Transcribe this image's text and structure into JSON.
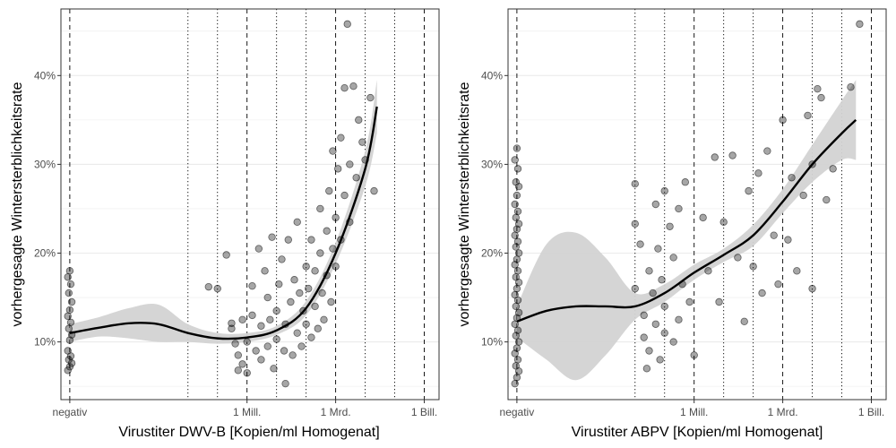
{
  "colors": {
    "background": "#ffffff",
    "panel_border": "#333333",
    "grid_major": "#ebebeb",
    "reference_lines": "#000000",
    "points": "#000000",
    "ribbon": "#d3d3d3",
    "smooth_line": "#000000"
  },
  "chart_data": [
    {
      "type": "scatter",
      "title": "",
      "xlabel": "Virustiter DWV-B [Kopien/ml Homogenat]",
      "ylabel": "vorhergesagte Wintersterblichkeitsrate",
      "x_scale": "log10 (with 'negativ' category at left)",
      "x_ticks": [
        "negativ",
        "1 Mill.",
        "1 Mrd.",
        "1 Bill."
      ],
      "x_tick_values": [
        1,
        1000000,
        1000000000,
        1000000000000
      ],
      "y_ticks": [
        "10%",
        "20%",
        "30%",
        "40%"
      ],
      "y_tick_values": [
        10,
        20,
        30,
        40
      ],
      "ylim": [
        3.5,
        47.5
      ],
      "xlim_log10": [
        -0.3,
        12.5
      ],
      "grid": true,
      "dashed_vlines": [
        1,
        1000000,
        1000000000,
        1000000000000
      ],
      "dotted_vlines": [
        10000,
        100000,
        10000000,
        100000000,
        10000000000,
        100000000000
      ],
      "smooth": {
        "x": [
          1,
          10,
          100,
          1000,
          10000,
          100000,
          1000000,
          10000000,
          100000000,
          1000000000,
          10000000000,
          25000000000
        ],
        "y": [
          11.0,
          11.6,
          12.1,
          12.0,
          11.0,
          10.4,
          10.5,
          11.3,
          13.8,
          20.0,
          29.5,
          36.5
        ],
        "lower": [
          10.0,
          10.6,
          10.4,
          10.0,
          10.0,
          9.8,
          10.0,
          10.8,
          13.0,
          18.8,
          27.5,
          33.5
        ],
        "upper": [
          12.0,
          12.8,
          13.8,
          14.2,
          12.0,
          11.0,
          11.0,
          11.8,
          14.6,
          21.2,
          31.5,
          39.5
        ]
      },
      "points": [
        {
          "x": 1,
          "y": 6.8
        },
        {
          "x": 1,
          "y": 7.2
        },
        {
          "x": 1,
          "y": 7.6
        },
        {
          "x": 1,
          "y": 8.0
        },
        {
          "x": 1,
          "y": 8.4
        },
        {
          "x": 1,
          "y": 9.0
        },
        {
          "x": 1,
          "y": 10.2
        },
        {
          "x": 1,
          "y": 10.8
        },
        {
          "x": 1,
          "y": 11.5
        },
        {
          "x": 1,
          "y": 12.2
        },
        {
          "x": 1,
          "y": 12.9
        },
        {
          "x": 1,
          "y": 13.6
        },
        {
          "x": 1,
          "y": 14.5
        },
        {
          "x": 1,
          "y": 15.5
        },
        {
          "x": 1,
          "y": 16.5
        },
        {
          "x": 1,
          "y": 17.3
        },
        {
          "x": 1,
          "y": 18.0
        },
        {
          "x": 50000,
          "y": 16.2
        },
        {
          "x": 100000,
          "y": 16.0
        },
        {
          "x": 200000,
          "y": 19.8
        },
        {
          "x": 300000,
          "y": 12.1
        },
        {
          "x": 300000,
          "y": 11.5
        },
        {
          "x": 400000,
          "y": 9.8
        },
        {
          "x": 500000,
          "y": 8.5
        },
        {
          "x": 500000,
          "y": 6.8
        },
        {
          "x": 700000,
          "y": 12.5
        },
        {
          "x": 700000,
          "y": 7.5
        },
        {
          "x": 1000000,
          "y": 10.0
        },
        {
          "x": 1000000,
          "y": 6.5
        },
        {
          "x": 1500000,
          "y": 13.0
        },
        {
          "x": 1500000,
          "y": 16.3
        },
        {
          "x": 2000000,
          "y": 9.0
        },
        {
          "x": 2500000,
          "y": 20.5
        },
        {
          "x": 3000000,
          "y": 11.8
        },
        {
          "x": 3000000,
          "y": 8.0
        },
        {
          "x": 4000000,
          "y": 18.0
        },
        {
          "x": 5000000,
          "y": 15.0
        },
        {
          "x": 5000000,
          "y": 9.5
        },
        {
          "x": 6000000,
          "y": 12.5
        },
        {
          "x": 7000000,
          "y": 21.8
        },
        {
          "x": 8000000,
          "y": 7.0
        },
        {
          "x": 10000000,
          "y": 10.3
        },
        {
          "x": 10000000,
          "y": 13.5
        },
        {
          "x": 12000000,
          "y": 16.5
        },
        {
          "x": 15000000,
          "y": 19.3
        },
        {
          "x": 18000000,
          "y": 9.0
        },
        {
          "x": 20000000,
          "y": 12.0
        },
        {
          "x": 20000000,
          "y": 5.3
        },
        {
          "x": 25000000,
          "y": 21.5
        },
        {
          "x": 30000000,
          "y": 14.5
        },
        {
          "x": 35000000,
          "y": 8.5
        },
        {
          "x": 40000000,
          "y": 17.0
        },
        {
          "x": 50000000,
          "y": 23.5
        },
        {
          "x": 50000000,
          "y": 11.0
        },
        {
          "x": 60000000,
          "y": 15.5
        },
        {
          "x": 70000000,
          "y": 9.5
        },
        {
          "x": 80000000,
          "y": 13.5
        },
        {
          "x": 100000000,
          "y": 18.5
        },
        {
          "x": 100000000,
          "y": 12.0
        },
        {
          "x": 120000000,
          "y": 16.0
        },
        {
          "x": 150000000,
          "y": 10.5
        },
        {
          "x": 150000000,
          "y": 21.5
        },
        {
          "x": 200000000,
          "y": 14.0
        },
        {
          "x": 200000000,
          "y": 18.0
        },
        {
          "x": 250000000,
          "y": 11.5
        },
        {
          "x": 300000000,
          "y": 25.0
        },
        {
          "x": 300000000,
          "y": 20.0
        },
        {
          "x": 350000000,
          "y": 15.5
        },
        {
          "x": 400000000,
          "y": 12.5
        },
        {
          "x": 500000000,
          "y": 22.5
        },
        {
          "x": 500000000,
          "y": 17.5
        },
        {
          "x": 600000000,
          "y": 27.0
        },
        {
          "x": 700000000,
          "y": 14.5
        },
        {
          "x": 800000000,
          "y": 20.5
        },
        {
          "x": 800000000,
          "y": 31.5
        },
        {
          "x": 1000000000,
          "y": 24.0
        },
        {
          "x": 1000000000,
          "y": 18.5
        },
        {
          "x": 1200000000,
          "y": 29.5
        },
        {
          "x": 1500000000,
          "y": 21.5
        },
        {
          "x": 1500000000,
          "y": 33.0
        },
        {
          "x": 2000000000,
          "y": 26.5
        },
        {
          "x": 2000000000,
          "y": 38.6
        },
        {
          "x": 2500000000,
          "y": 45.8
        },
        {
          "x": 3000000000,
          "y": 30.0
        },
        {
          "x": 3000000000,
          "y": 23.5
        },
        {
          "x": 4000000000,
          "y": 38.8
        },
        {
          "x": 5000000000,
          "y": 28.5
        },
        {
          "x": 6000000000,
          "y": 35.0
        },
        {
          "x": 8000000000,
          "y": 32.5
        },
        {
          "x": 10000000000,
          "y": 30.5
        },
        {
          "x": 15000000000,
          "y": 37.5
        },
        {
          "x": 20000000000,
          "y": 27.0
        }
      ]
    },
    {
      "type": "scatter",
      "title": "",
      "xlabel": "Virustiter ABPV [Kopien/ml Homogenat]",
      "ylabel": "vorhergesagte Wintersterblichkeitsrate",
      "x_scale": "log10 (with 'negativ' category at left)",
      "x_ticks": [
        "negativ",
        "1 Mill.",
        "1 Mrd.",
        "1 Bill."
      ],
      "x_tick_values": [
        1,
        1000000,
        1000000000,
        1000000000000
      ],
      "y_ticks": [
        "10%",
        "20%",
        "30%",
        "40%"
      ],
      "y_tick_values": [
        10,
        20,
        30,
        40
      ],
      "ylim": [
        3.5,
        47.5
      ],
      "xlim_log10": [
        -0.3,
        12.5
      ],
      "grid": true,
      "dashed_vlines": [
        1,
        1000000,
        1000000000,
        1000000000000
      ],
      "dotted_vlines": [
        10000,
        100000,
        10000000,
        100000000,
        10000000000,
        100000000000
      ],
      "smooth": {
        "x": [
          1,
          10,
          100,
          1000,
          10000,
          100000,
          1000000,
          10000000,
          100000000,
          1000000000,
          10000000000,
          100000000000,
          300000000000
        ],
        "y": [
          12.3,
          13.5,
          14.0,
          14.0,
          14.0,
          15.5,
          17.8,
          19.8,
          22.0,
          25.8,
          30.0,
          33.5,
          35.0
        ],
        "lower": [
          10.5,
          8.0,
          5.7,
          8.5,
          12.5,
          14.5,
          17.0,
          19.0,
          20.8,
          24.5,
          28.0,
          30.5,
          30.5
        ],
        "upper": [
          14.0,
          21.0,
          22.3,
          19.5,
          15.5,
          16.5,
          18.7,
          20.5,
          23.2,
          27.2,
          32.2,
          37.2,
          39.5
        ]
      },
      "points": [
        {
          "x": 1,
          "y": 5.3
        },
        {
          "x": 1,
          "y": 6.0
        },
        {
          "x": 1,
          "y": 6.7
        },
        {
          "x": 1,
          "y": 7.3
        },
        {
          "x": 1,
          "y": 8.0
        },
        {
          "x": 1,
          "y": 8.7
        },
        {
          "x": 1,
          "y": 9.3
        },
        {
          "x": 1,
          "y": 10.0
        },
        {
          "x": 1,
          "y": 10.7
        },
        {
          "x": 1,
          "y": 11.3
        },
        {
          "x": 1,
          "y": 12.0
        },
        {
          "x": 1,
          "y": 12.7
        },
        {
          "x": 1,
          "y": 13.3
        },
        {
          "x": 1,
          "y": 14.0
        },
        {
          "x": 1,
          "y": 14.7
        },
        {
          "x": 1,
          "y": 15.3
        },
        {
          "x": 1,
          "y": 16.0
        },
        {
          "x": 1,
          "y": 16.7
        },
        {
          "x": 1,
          "y": 17.3
        },
        {
          "x": 1,
          "y": 18.0
        },
        {
          "x": 1,
          "y": 18.7
        },
        {
          "x": 1,
          "y": 19.3
        },
        {
          "x": 1,
          "y": 20.0
        },
        {
          "x": 1,
          "y": 20.7
        },
        {
          "x": 1,
          "y": 21.3
        },
        {
          "x": 1,
          "y": 22.0
        },
        {
          "x": 1,
          "y": 22.7
        },
        {
          "x": 1,
          "y": 23.3
        },
        {
          "x": 1,
          "y": 24.0
        },
        {
          "x": 1,
          "y": 24.7
        },
        {
          "x": 1,
          "y": 25.5
        },
        {
          "x": 1,
          "y": 26.5
        },
        {
          "x": 1,
          "y": 27.5
        },
        {
          "x": 1,
          "y": 28.0
        },
        {
          "x": 1,
          "y": 29.5
        },
        {
          "x": 1,
          "y": 30.5
        },
        {
          "x": 1,
          "y": 31.8
        },
        {
          "x": 10000,
          "y": 27.8
        },
        {
          "x": 10000,
          "y": 23.3
        },
        {
          "x": 10000,
          "y": 16.0
        },
        {
          "x": 15000,
          "y": 21.0
        },
        {
          "x": 20000,
          "y": 13.0
        },
        {
          "x": 20000,
          "y": 10.5
        },
        {
          "x": 25000,
          "y": 7.0
        },
        {
          "x": 30000,
          "y": 18.0
        },
        {
          "x": 30000,
          "y": 9.0
        },
        {
          "x": 40000,
          "y": 15.5
        },
        {
          "x": 50000,
          "y": 25.5
        },
        {
          "x": 50000,
          "y": 12.0
        },
        {
          "x": 60000,
          "y": 20.5
        },
        {
          "x": 70000,
          "y": 8.0
        },
        {
          "x": 80000,
          "y": 17.0
        },
        {
          "x": 100000,
          "y": 27.0
        },
        {
          "x": 100000,
          "y": 14.0
        },
        {
          "x": 100000,
          "y": 11.0
        },
        {
          "x": 150000,
          "y": 23.0
        },
        {
          "x": 200000,
          "y": 19.5
        },
        {
          "x": 200000,
          "y": 10.0
        },
        {
          "x": 300000,
          "y": 25.0
        },
        {
          "x": 300000,
          "y": 12.5
        },
        {
          "x": 400000,
          "y": 16.5
        },
        {
          "x": 500000,
          "y": 28.0
        },
        {
          "x": 700000,
          "y": 14.5
        },
        {
          "x": 1000000,
          "y": 8.5
        },
        {
          "x": 2000000,
          "y": 24.0
        },
        {
          "x": 3000000,
          "y": 18.0
        },
        {
          "x": 5000000,
          "y": 30.8
        },
        {
          "x": 7000000,
          "y": 14.5
        },
        {
          "x": 10000000,
          "y": 23.5
        },
        {
          "x": 20000000,
          "y": 31.0
        },
        {
          "x": 30000000,
          "y": 19.5
        },
        {
          "x": 50000000,
          "y": 12.3
        },
        {
          "x": 70000000,
          "y": 27.0
        },
        {
          "x": 100000000,
          "y": 18.5
        },
        {
          "x": 150000000,
          "y": 29.0
        },
        {
          "x": 200000000,
          "y": 15.5
        },
        {
          "x": 300000000,
          "y": 31.5
        },
        {
          "x": 500000000,
          "y": 22.0
        },
        {
          "x": 700000000,
          "y": 16.5
        },
        {
          "x": 1000000000,
          "y": 35.0
        },
        {
          "x": 1500000000,
          "y": 21.5
        },
        {
          "x": 2000000000,
          "y": 28.5
        },
        {
          "x": 3000000000,
          "y": 18.0
        },
        {
          "x": 5000000000,
          "y": 26.5
        },
        {
          "x": 7000000000,
          "y": 35.5
        },
        {
          "x": 10000000000,
          "y": 30.0
        },
        {
          "x": 10000000000,
          "y": 16.0
        },
        {
          "x": 15000000000,
          "y": 38.5
        },
        {
          "x": 20000000000,
          "y": 37.5
        },
        {
          "x": 30000000000,
          "y": 26.0
        },
        {
          "x": 50000000000,
          "y": 29.5
        },
        {
          "x": 200000000000,
          "y": 38.7
        },
        {
          "x": 400000000000,
          "y": 45.8
        }
      ]
    }
  ]
}
